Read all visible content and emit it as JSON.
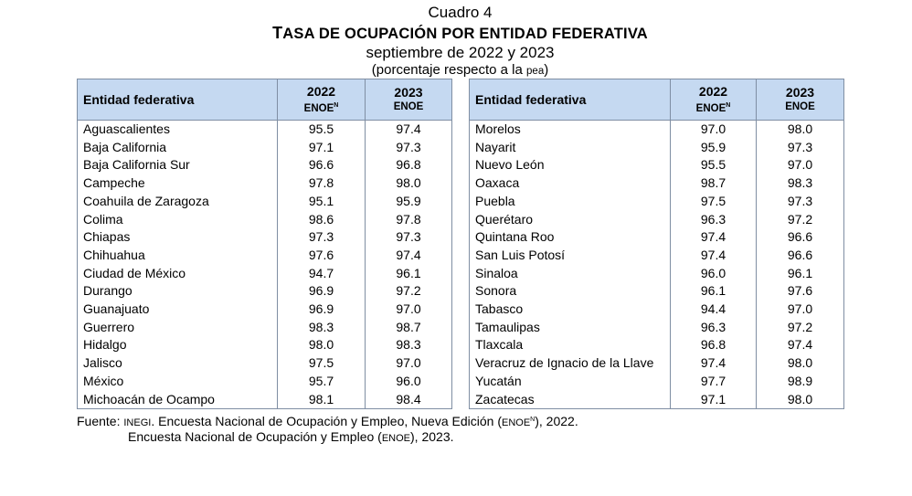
{
  "header": {
    "cuadro": "Cuadro 4",
    "title": "Tasa de ocupación por entidad federativa",
    "subtitle": "septiembre de 2022 y 2023",
    "note_prefix": "(porcentaje respecto a la ",
    "note_abbr": "pea",
    "note_suffix": ")"
  },
  "columns": {
    "entity": "Entidad federativa",
    "year1": "2022",
    "survey1": "ENOE",
    "survey1_sup": "N",
    "year2": "2023",
    "survey2": "ENOE"
  },
  "left_rows": [
    {
      "name": "Aguascalientes",
      "v2022": "95.5",
      "v2023": "97.4"
    },
    {
      "name": "Baja California",
      "v2022": "97.1",
      "v2023": "97.3"
    },
    {
      "name": "Baja California Sur",
      "v2022": "96.6",
      "v2023": "96.8"
    },
    {
      "name": "Campeche",
      "v2022": "97.8",
      "v2023": "98.0"
    },
    {
      "name": "Coahuila de Zaragoza",
      "v2022": "95.1",
      "v2023": "95.9"
    },
    {
      "name": "Colima",
      "v2022": "98.6",
      "v2023": "97.8"
    },
    {
      "name": "Chiapas",
      "v2022": "97.3",
      "v2023": "97.3"
    },
    {
      "name": "Chihuahua",
      "v2022": "97.6",
      "v2023": "97.4"
    },
    {
      "name": "Ciudad de México",
      "v2022": "94.7",
      "v2023": "96.1"
    },
    {
      "name": "Durango",
      "v2022": "96.9",
      "v2023": "97.2"
    },
    {
      "name": "Guanajuato",
      "v2022": "96.9",
      "v2023": "97.0"
    },
    {
      "name": "Guerrero",
      "v2022": "98.3",
      "v2023": "98.7"
    },
    {
      "name": "Hidalgo",
      "v2022": "98.0",
      "v2023": "98.3"
    },
    {
      "name": "Jalisco",
      "v2022": "97.5",
      "v2023": "97.0"
    },
    {
      "name": "México",
      "v2022": "95.7",
      "v2023": "96.0"
    },
    {
      "name": "Michoacán de Ocampo",
      "v2022": "98.1",
      "v2023": "98.4"
    }
  ],
  "right_rows": [
    {
      "name": "Morelos",
      "v2022": "97.0",
      "v2023": "98.0"
    },
    {
      "name": "Nayarit",
      "v2022": "95.9",
      "v2023": "97.3"
    },
    {
      "name": "Nuevo León",
      "v2022": "95.5",
      "v2023": "97.0"
    },
    {
      "name": "Oaxaca",
      "v2022": "98.7",
      "v2023": "98.3"
    },
    {
      "name": "Puebla",
      "v2022": "97.5",
      "v2023": "97.3"
    },
    {
      "name": "Querétaro",
      "v2022": "96.3",
      "v2023": "97.2"
    },
    {
      "name": "Quintana Roo",
      "v2022": "97.4",
      "v2023": "96.6"
    },
    {
      "name": "San Luis Potosí",
      "v2022": "97.4",
      "v2023": "96.6"
    },
    {
      "name": "Sinaloa",
      "v2022": "96.0",
      "v2023": "96.1"
    },
    {
      "name": "Sonora",
      "v2022": "96.1",
      "v2023": "97.6"
    },
    {
      "name": "Tabasco",
      "v2022": "94.4",
      "v2023": "97.0"
    },
    {
      "name": "Tamaulipas",
      "v2022": "96.3",
      "v2023": "97.2"
    },
    {
      "name": "Tlaxcala",
      "v2022": "96.8",
      "v2023": "97.4"
    },
    {
      "name": "Veracruz de Ignacio de la Llave",
      "v2022": "97.4",
      "v2023": "98.0"
    },
    {
      "name": "Yucatán",
      "v2022": "97.7",
      "v2023": "98.9"
    },
    {
      "name": "Zacatecas",
      "v2022": "97.1",
      "v2023": "98.0"
    }
  ],
  "source": {
    "label": "Fuente: ",
    "org": "INEGI",
    "line1_text": ". Encuesta Nacional de Ocupación y Empleo, Nueva Edición (",
    "line1_abbr": "ENOE",
    "line1_sup": "N",
    "line1_end": "), 2022.",
    "line2_text": "Encuesta Nacional de Ocupación y Empleo (",
    "line2_abbr": "ENOE",
    "line2_end": "), 2023."
  }
}
